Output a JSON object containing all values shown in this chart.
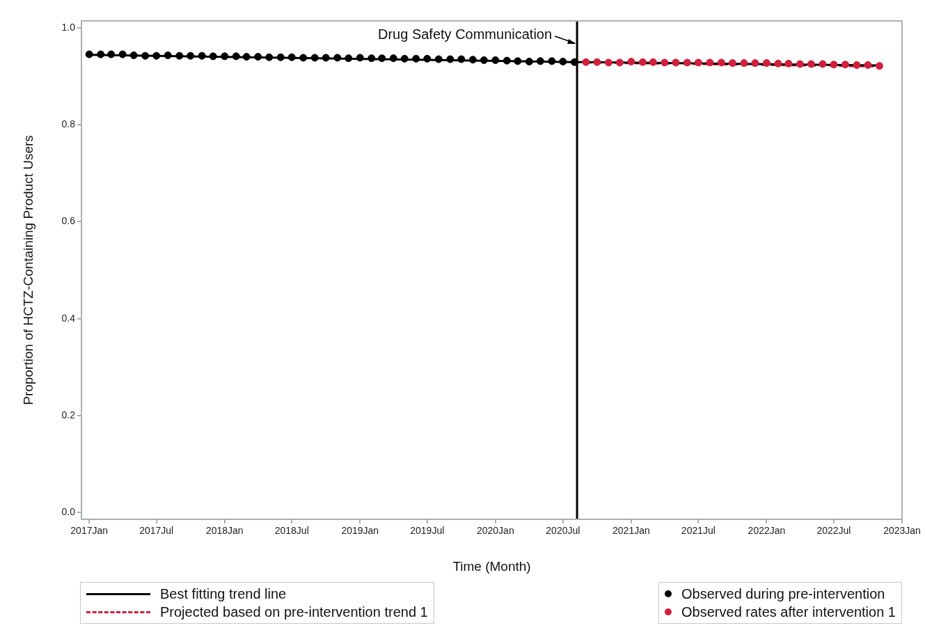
{
  "chart_data": {
    "type": "scatter",
    "xlabel": "Time (Month)",
    "ylabel": "Proportion of HCTZ-Containing Product Users",
    "xlim": [
      "2016-12-11",
      "2023-01-01"
    ],
    "xticks": [
      {
        "value": "2017-01",
        "label": "2017Jan"
      },
      {
        "value": "2017-07",
        "label": "2017Jul"
      },
      {
        "value": "2018-01",
        "label": "2018Jan"
      },
      {
        "value": "2018-07",
        "label": "2018Jul"
      },
      {
        "value": "2019-01",
        "label": "2019Jan"
      },
      {
        "value": "2019-07",
        "label": "2019Jul"
      },
      {
        "value": "2020-01",
        "label": "2020Jan"
      },
      {
        "value": "2020-07",
        "label": "2020Jul"
      },
      {
        "value": "2021-01",
        "label": "2021Jan"
      },
      {
        "value": "2021-07",
        "label": "2021Jul"
      },
      {
        "value": "2022-01",
        "label": "2022Jan"
      },
      {
        "value": "2022-07",
        "label": "2022Jul"
      },
      {
        "value": "2023-01",
        "label": "2023Jan"
      }
    ],
    "ylim": [
      -0.014,
      1.014
    ],
    "yticks": [
      {
        "value": 0,
        "label": "0.0"
      },
      0.2,
      0.4,
      0.6,
      0.8,
      {
        "value": 1,
        "label": "1.0"
      }
    ],
    "grid": false,
    "legend": "bottom",
    "ref_lines": [
      {
        "axis": "x",
        "value": "2020-08-08",
        "label": "Drug Safety Communication",
        "color": "#000000"
      }
    ],
    "series": [
      {
        "name": "Best fitting trend line",
        "type": "line",
        "line_style": "solid",
        "color": "#000000",
        "x": [
          "2017-01",
          "2020-08",
          "2020-09",
          "2022-11"
        ],
        "values": [
          0.944,
          0.929,
          0.929,
          0.922
        ]
      },
      {
        "name": "Projected based on pre-intervention trend 1",
        "type": "line",
        "line_style": "dashed",
        "color": "#c8203c",
        "x": [
          "2020-09",
          "2022-11"
        ],
        "values": [
          0.928,
          0.92
        ]
      },
      {
        "name": "Observed during pre-intervention",
        "type": "scatter",
        "marker": "circle",
        "color": "#000000",
        "x": [
          "2017-01",
          "2017-02",
          "2017-03",
          "2017-04",
          "2017-05",
          "2017-06",
          "2017-07",
          "2017-08",
          "2017-09",
          "2017-10",
          "2017-11",
          "2017-12",
          "2018-01",
          "2018-02",
          "2018-03",
          "2018-04",
          "2018-05",
          "2018-06",
          "2018-07",
          "2018-08",
          "2018-09",
          "2018-10",
          "2018-11",
          "2018-12",
          "2019-01",
          "2019-02",
          "2019-03",
          "2019-04",
          "2019-05",
          "2019-06",
          "2019-07",
          "2019-08",
          "2019-09",
          "2019-10",
          "2019-11",
          "2019-12",
          "2020-01",
          "2020-02",
          "2020-03",
          "2020-04",
          "2020-05",
          "2020-06",
          "2020-07",
          "2020-08"
        ],
        "values": [
          0.945,
          0.945,
          0.945,
          0.945,
          0.943,
          0.942,
          0.942,
          0.943,
          0.942,
          0.942,
          0.942,
          0.941,
          0.941,
          0.941,
          0.94,
          0.94,
          0.939,
          0.939,
          0.939,
          0.938,
          0.938,
          0.938,
          0.938,
          0.937,
          0.938,
          0.937,
          0.937,
          0.937,
          0.936,
          0.936,
          0.936,
          0.935,
          0.935,
          0.935,
          0.934,
          0.933,
          0.933,
          0.932,
          0.931,
          0.93,
          0.931,
          0.931,
          0.93,
          0.929
        ]
      },
      {
        "name": "Observed rates after intervention 1",
        "type": "scatter",
        "marker": "circle",
        "color": "#d21f3c",
        "x": [
          "2020-09",
          "2020-10",
          "2020-11",
          "2020-12",
          "2021-01",
          "2021-02",
          "2021-03",
          "2021-04",
          "2021-05",
          "2021-06",
          "2021-07",
          "2021-08",
          "2021-09",
          "2021-10",
          "2021-11",
          "2021-12",
          "2022-01",
          "2022-02",
          "2022-03",
          "2022-04",
          "2022-05",
          "2022-06",
          "2022-07",
          "2022-08",
          "2022-09",
          "2022-10",
          "2022-11"
        ],
        "values": [
          0.929,
          0.929,
          0.928,
          0.928,
          0.93,
          0.929,
          0.929,
          0.928,
          0.928,
          0.928,
          0.928,
          0.928,
          0.928,
          0.927,
          0.927,
          0.927,
          0.927,
          0.926,
          0.926,
          0.925,
          0.925,
          0.925,
          0.924,
          0.924,
          0.923,
          0.923,
          0.921
        ]
      }
    ]
  }
}
